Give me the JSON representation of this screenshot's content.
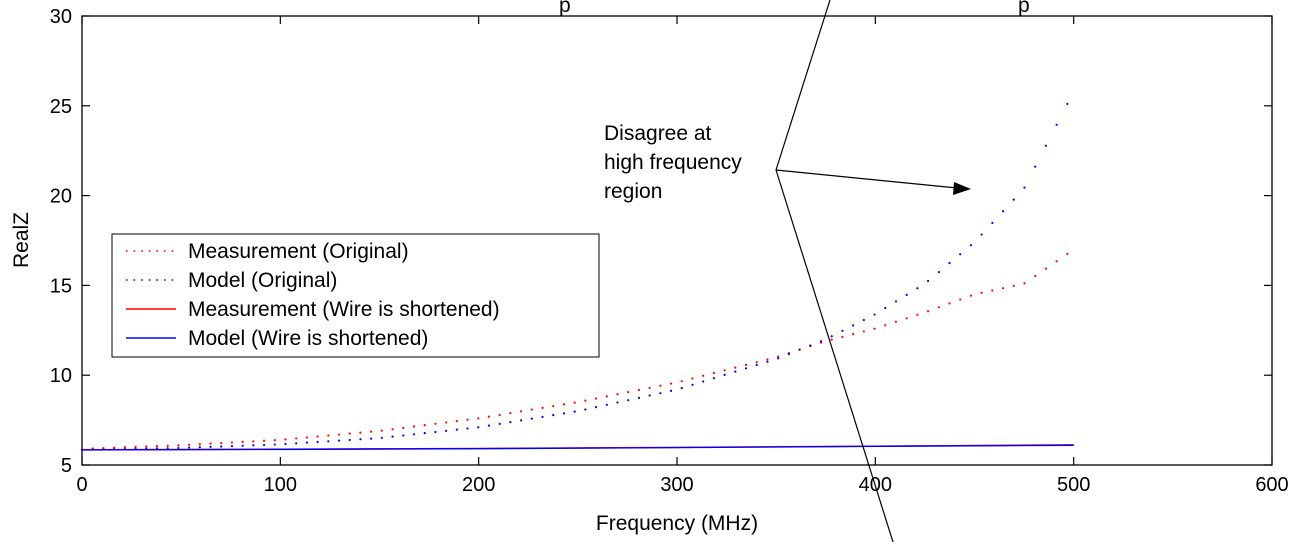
{
  "chart_data": {
    "type": "line",
    "title": "",
    "xlabel": "Frequency (MHz)",
    "ylabel": "RealZ",
    "xlim": [
      0,
      600
    ],
    "ylim": [
      5,
      30
    ],
    "xticks": [
      0,
      100,
      200,
      300,
      400,
      500,
      600
    ],
    "yticks": [
      5,
      10,
      15,
      20,
      25,
      30
    ],
    "grid": false,
    "legend_position": "middle-left",
    "series": [
      {
        "name": "Measurement (Original)",
        "color": "#ff0000",
        "style": "dotted",
        "x": [
          0,
          50,
          100,
          150,
          200,
          250,
          300,
          350,
          375,
          400,
          425,
          450,
          475,
          500
        ],
        "y": [
          5.9,
          6.1,
          6.4,
          6.9,
          7.6,
          8.5,
          9.6,
          11.0,
          11.9,
          12.6,
          13.5,
          14.5,
          15.1,
          17.0
        ]
      },
      {
        "name": "Model (Original)",
        "color": "#0000ff",
        "style": "dotted",
        "x": [
          0,
          50,
          100,
          150,
          200,
          250,
          300,
          350,
          375,
          400,
          425,
          450,
          475,
          500
        ],
        "y": [
          5.85,
          5.95,
          6.15,
          6.5,
          7.1,
          8.0,
          9.2,
          10.9,
          12.0,
          13.4,
          15.1,
          17.4,
          20.4,
          25.8
        ]
      },
      {
        "name": "Measurement (Wire is shortened)",
        "color": "#ff0000",
        "style": "solid",
        "x": [
          0,
          100,
          200,
          300,
          400,
          500
        ],
        "y": [
          5.85,
          5.88,
          5.92,
          5.98,
          6.05,
          6.12
        ]
      },
      {
        "name": "Model (Wire is shortened)",
        "color": "#0000ff",
        "style": "solid",
        "x": [
          0,
          100,
          200,
          300,
          400,
          500
        ],
        "y": [
          5.84,
          5.87,
          5.91,
          5.97,
          6.04,
          6.1
        ]
      }
    ],
    "annotation": {
      "lines": [
        "Disagree at",
        "high frequency",
        "region"
      ]
    },
    "top_text": [
      "p",
      "p"
    ]
  }
}
